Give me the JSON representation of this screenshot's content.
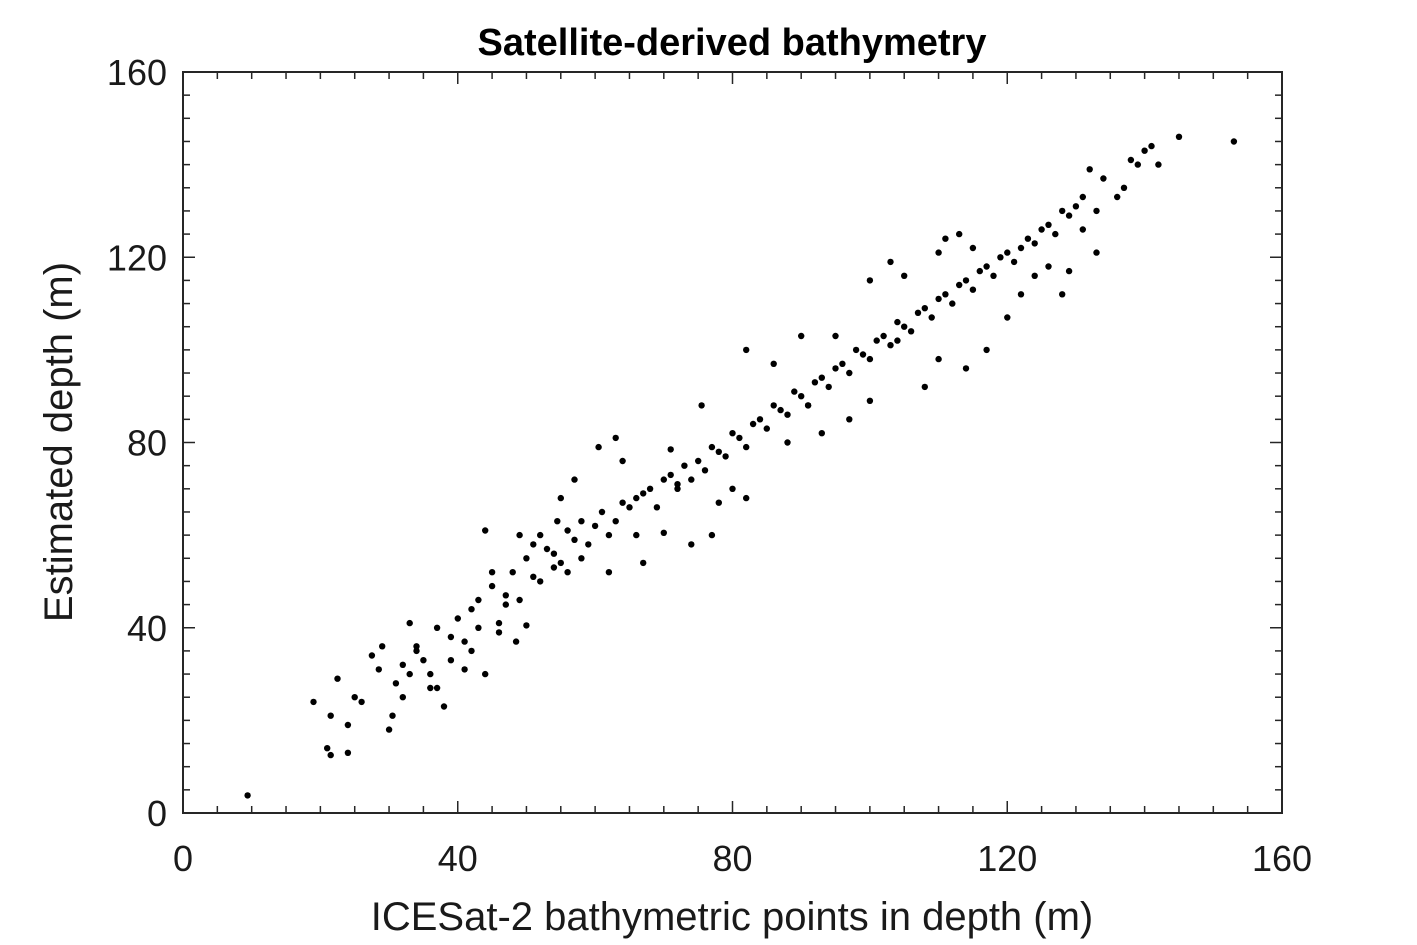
{
  "chart_data": {
    "type": "scatter",
    "title": "Satellite-derived bathymetry",
    "xlabel": "ICESat-2 bathymetric points in depth (m)",
    "ylabel": "Estimated depth (m)",
    "xlim": [
      0,
      160
    ],
    "ylim": [
      0,
      160
    ],
    "xticks": [
      0,
      40,
      80,
      120,
      160
    ],
    "yticks": [
      0,
      40,
      80,
      120,
      160
    ],
    "xtick_labels": [
      "0",
      "40",
      "80",
      "120",
      "160"
    ],
    "ytick_labels": [
      "0",
      "40",
      "80",
      "120",
      "160"
    ],
    "grid": false,
    "marker_color": "#000000",
    "series": [
      {
        "values_xy": [
          [
            9.4,
            3.8
          ],
          [
            19,
            24
          ],
          [
            21,
            14
          ],
          [
            21.5,
            12.5
          ],
          [
            24,
            13
          ],
          [
            21.5,
            21
          ],
          [
            22.5,
            29
          ],
          [
            24,
            19
          ],
          [
            25,
            25
          ],
          [
            26,
            24
          ],
          [
            27.5,
            34
          ],
          [
            28.5,
            31
          ],
          [
            30,
            18
          ],
          [
            30.5,
            21
          ],
          [
            31,
            28
          ],
          [
            32,
            25
          ],
          [
            33,
            30
          ],
          [
            34,
            36
          ],
          [
            35,
            33
          ],
          [
            36,
            27
          ],
          [
            37,
            40
          ],
          [
            38,
            23
          ],
          [
            39,
            38
          ],
          [
            40,
            42
          ],
          [
            41,
            37
          ],
          [
            42,
            44
          ],
          [
            43,
            46
          ],
          [
            44,
            61
          ],
          [
            45,
            49
          ],
          [
            46,
            41
          ],
          [
            47,
            47
          ],
          [
            48,
            52
          ],
          [
            49,
            46
          ],
          [
            50,
            55
          ],
          [
            51,
            51
          ],
          [
            52,
            50
          ],
          [
            53,
            57
          ],
          [
            54,
            53
          ],
          [
            55,
            54
          ],
          [
            56,
            61
          ],
          [
            57,
            59
          ],
          [
            58,
            63
          ],
          [
            59,
            58
          ],
          [
            60,
            62
          ],
          [
            61,
            65
          ],
          [
            62,
            60
          ],
          [
            63,
            63
          ],
          [
            64,
            67
          ],
          [
            65,
            66
          ],
          [
            66,
            60
          ],
          [
            67,
            69
          ],
          [
            68,
            70
          ],
          [
            69,
            66
          ],
          [
            70,
            72
          ],
          [
            71,
            73
          ],
          [
            72,
            70
          ],
          [
            73,
            75
          ],
          [
            74,
            72
          ],
          [
            75,
            76
          ],
          [
            76,
            74
          ],
          [
            77,
            79
          ],
          [
            78,
            78
          ],
          [
            79,
            77
          ],
          [
            80,
            82
          ],
          [
            81,
            81
          ],
          [
            82,
            79
          ],
          [
            83,
            84
          ],
          [
            84,
            85
          ],
          [
            85,
            83
          ],
          [
            86,
            88
          ],
          [
            87,
            87
          ],
          [
            88,
            86
          ],
          [
            89,
            91
          ],
          [
            90,
            90
          ],
          [
            91,
            88
          ],
          [
            92,
            93
          ],
          [
            93,
            94
          ],
          [
            94,
            92
          ],
          [
            95,
            96
          ],
          [
            96,
            97
          ],
          [
            97,
            95
          ],
          [
            98,
            100
          ],
          [
            99,
            99
          ],
          [
            100,
            98
          ],
          [
            101,
            102
          ],
          [
            102,
            103
          ],
          [
            103,
            101
          ],
          [
            104,
            106
          ],
          [
            105,
            105
          ],
          [
            106,
            104
          ],
          [
            107,
            108
          ],
          [
            108,
            109
          ],
          [
            109,
            107
          ],
          [
            110,
            111
          ],
          [
            111,
            112
          ],
          [
            112,
            110
          ],
          [
            113,
            114
          ],
          [
            114,
            115
          ],
          [
            115,
            113
          ],
          [
            116,
            117
          ],
          [
            117,
            118
          ],
          [
            118,
            116
          ],
          [
            119,
            120
          ],
          [
            120,
            121
          ],
          [
            121,
            119
          ],
          [
            122,
            122
          ],
          [
            123,
            124
          ],
          [
            124,
            123
          ],
          [
            125,
            126
          ],
          [
            126,
            127
          ],
          [
            127,
            125
          ],
          [
            128,
            130
          ],
          [
            129,
            129
          ],
          [
            130,
            131
          ],
          [
            131,
            133
          ],
          [
            132,
            139
          ],
          [
            133,
            130
          ],
          [
            134,
            137
          ],
          [
            136,
            133
          ],
          [
            137,
            135
          ],
          [
            138,
            141
          ],
          [
            139,
            140
          ],
          [
            140,
            143
          ],
          [
            141,
            144
          ],
          [
            142,
            140
          ],
          [
            145,
            146
          ],
          [
            153,
            145
          ],
          [
            60.5,
            79
          ],
          [
            71,
            78.5
          ],
          [
            75.5,
            88
          ],
          [
            70,
            60.5
          ],
          [
            63,
            81
          ],
          [
            67,
            54
          ],
          [
            64,
            76
          ],
          [
            62,
            52
          ],
          [
            50,
            40.5
          ],
          [
            46,
            39
          ],
          [
            48.5,
            37
          ],
          [
            29,
            36
          ],
          [
            33,
            41
          ],
          [
            41,
            31
          ],
          [
            44,
            30
          ],
          [
            37,
            27
          ],
          [
            54.5,
            63
          ],
          [
            52,
            60
          ],
          [
            55,
            68
          ],
          [
            57,
            72
          ],
          [
            82,
            100
          ],
          [
            86,
            97
          ],
          [
            90,
            103
          ],
          [
            95,
            103
          ],
          [
            100,
            115
          ],
          [
            103,
            119
          ],
          [
            105,
            116
          ],
          [
            110,
            121
          ],
          [
            111,
            124
          ],
          [
            113,
            125
          ],
          [
            115,
            122
          ],
          [
            108,
            92
          ],
          [
            104,
            102
          ],
          [
            110,
            98
          ],
          [
            114,
            96
          ],
          [
            117,
            100
          ],
          [
            120,
            107
          ],
          [
            122,
            112
          ],
          [
            124,
            116
          ],
          [
            126,
            118
          ],
          [
            128,
            112
          ],
          [
            129,
            117
          ],
          [
            131,
            126
          ],
          [
            133,
            121
          ],
          [
            88,
            80
          ],
          [
            93,
            82
          ],
          [
            97,
            85
          ],
          [
            100,
            89
          ],
          [
            91,
            88
          ],
          [
            80,
            70
          ],
          [
            78,
            67
          ],
          [
            82,
            68
          ],
          [
            77,
            60
          ],
          [
            74,
            58
          ],
          [
            72,
            71
          ],
          [
            66,
            68
          ],
          [
            58,
            55
          ],
          [
            56,
            52
          ],
          [
            54,
            56
          ],
          [
            51,
            58
          ],
          [
            49,
            60
          ],
          [
            47,
            45
          ],
          [
            45,
            52
          ],
          [
            43,
            40
          ],
          [
            42,
            35
          ],
          [
            39,
            33
          ],
          [
            36,
            30
          ],
          [
            34,
            35
          ],
          [
            32,
            32
          ]
        ]
      }
    ]
  }
}
